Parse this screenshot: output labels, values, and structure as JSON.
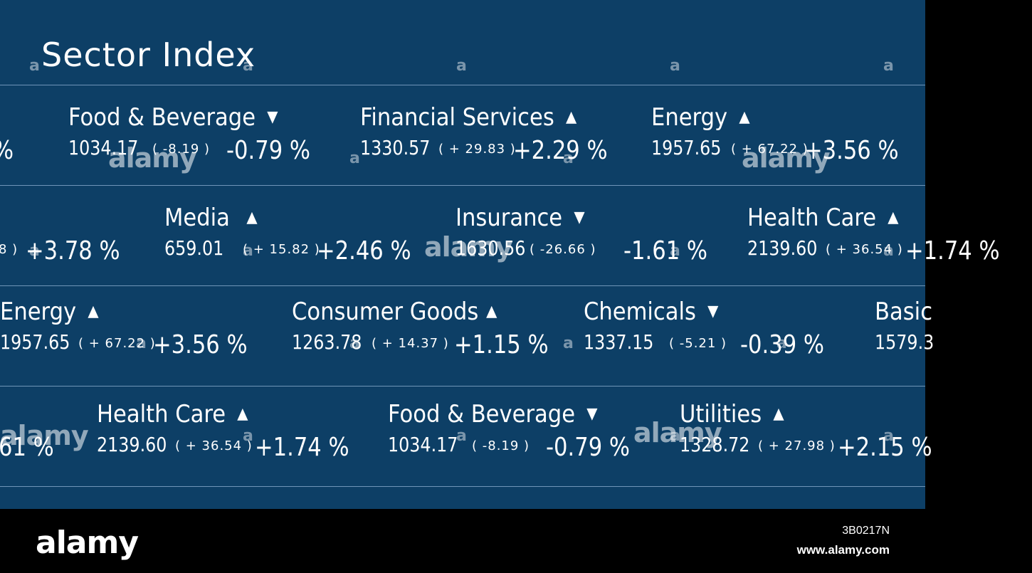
{
  "title": "Sector Index",
  "colors": {
    "background": "#0d3f66",
    "text": "#ffffff",
    "divider": "#6f95b8"
  },
  "rows": [
    [
      {
        "name": "Food & Beverage",
        "arrow": "▼",
        "value": "1034.17",
        "change": "( -8.19 )",
        "pct": "-0.79 %"
      },
      {
        "name": "Financial Services",
        "arrow": "▲",
        "value": "1330.57",
        "change": "( + 29.83 )",
        "pct": "+2.29 %"
      },
      {
        "name": "Energy",
        "arrow": "▲",
        "value": "1957.65",
        "change": "( + 67.22 )",
        "pct": "+3.56 %"
      }
    ],
    [
      {
        "name": "Media",
        "arrow": "▲",
        "value": "659.01",
        "change": "( + 15.82 )",
        "pct": "+2.46 %"
      },
      {
        "name": "Insurance",
        "arrow": "▼",
        "value": "1630.56",
        "change": "( -26.66 )",
        "pct": "-1.61 %"
      },
      {
        "name": "Health Care",
        "arrow": "▲",
        "value": "2139.60",
        "change": "( + 36.54 )",
        "pct": "+1.74 %"
      }
    ],
    [
      {
        "name": "Energy",
        "arrow": "▲",
        "value": "1957.65",
        "change": "( + 67.22 )",
        "pct": "+3.56 %"
      },
      {
        "name": "Consumer Goods",
        "arrow": "▲",
        "value": "1263.78",
        "change": "( + 14.37 )",
        "pct": "+1.15 %"
      },
      {
        "name": "Chemicals",
        "arrow": "▼",
        "value": "1337.15",
        "change": "( -5.21 )",
        "pct": "-0.39 %"
      },
      {
        "name": "Basic",
        "arrow": "",
        "value": "1579.3",
        "change": "",
        "pct": ""
      }
    ],
    [
      {
        "name": "Health Care",
        "arrow": "▲",
        "value": "2139.60",
        "change": "( + 36.54 )",
        "pct": "+1.74 %"
      },
      {
        "name": "Food & Beverage",
        "arrow": "▼",
        "value": "1034.17",
        "change": "( -8.19 )",
        "pct": "-0.79 %"
      },
      {
        "name": "Utilities",
        "arrow": "▲",
        "value": "1328.72",
        "change": "( + 27.98 )",
        "pct": "+2.15 %"
      }
    ]
  ],
  "edge_fragments": {
    "row0_left_pct": "%",
    "row1_left_change": "8 )",
    "row1_left_pct": "+3.78 %",
    "row3_left_pct": "61 %"
  },
  "watermark": {
    "text": "alamy",
    "small": "a"
  },
  "footer": {
    "logo": "alamy",
    "image_id": "3B0217N",
    "url": "www.alamy.com"
  }
}
